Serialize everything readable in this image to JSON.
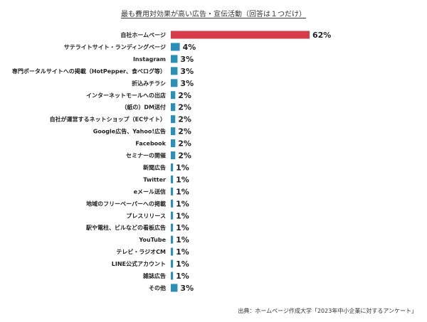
{
  "chart_data": {
    "type": "bar",
    "orientation": "horizontal",
    "title": "最も費用対効果が高い広告・宣伝活動（回答は１つだけ）",
    "categories": [
      "自社ホームページ",
      "サテライトサイト・ランディングページ",
      "Instagram",
      "専門ポータルサイトへの掲載（HotPepper、食べログ等）",
      "折込みチラシ",
      "インターネットモールへの出店",
      "（紙の）DM送付",
      "自社が運営するネットショップ（ECサイト）",
      "Google広告、Yahoo!広告",
      "Facebook",
      "セミナーの開催",
      "新聞広告",
      "Twitter",
      "eメール送信",
      "地域のフリーペーパーへの掲載",
      "プレスリリース",
      "駅や電柱、ビルなどの看板広告",
      "YouTube",
      "テレビ・ラジオCM",
      "LINE公式アカウント",
      "雑誌広告",
      "その他"
    ],
    "values": [
      62,
      4,
      3,
      3,
      3,
      2,
      2,
      2,
      2,
      2,
      2,
      1,
      1,
      1,
      1,
      1,
      1,
      1,
      1,
      1,
      1,
      3
    ],
    "value_labels": [
      "62%",
      "4%",
      "3%",
      "3%",
      "3%",
      "2%",
      "2%",
      "2%",
      "2%",
      "2%",
      "2%",
      "1%",
      "1%",
      "1%",
      "1%",
      "1%",
      "1%",
      "1%",
      "1%",
      "1%",
      "1%",
      "3%"
    ],
    "unit": "%",
    "xlim": [
      0,
      62
    ],
    "grid": false,
    "colors": {
      "highlight": "#d63c4a",
      "default": "#2b8fb8"
    },
    "highlight_index": 0
  },
  "source": "出典：ホームページ作成大学「2023年中小企業に対するアンケート」"
}
